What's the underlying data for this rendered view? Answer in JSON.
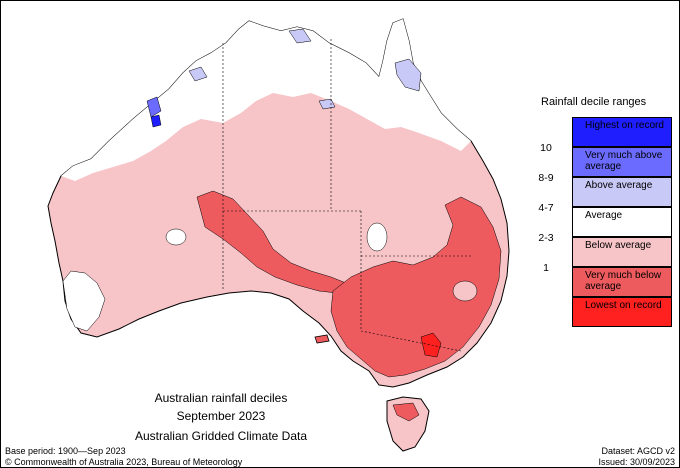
{
  "map": {
    "title_lines": [
      "Australian rainfall deciles",
      "September 2023",
      "Australian Gridded Climate Data"
    ],
    "base_period": "Base period: 1900—Sep 2023",
    "dataset": "Dataset: AGCD v2",
    "copyright": "© Commonwealth of Australia 2023, Bureau of Meteorology",
    "issued": "Issued: 30/09/2023"
  },
  "legend": {
    "title": "Rainfall decile ranges",
    "items": [
      {
        "range": "",
        "label": "Highest on record",
        "color": "#1e1eff"
      },
      {
        "range": "10",
        "label": "Very much above average",
        "color": "#6b6bff"
      },
      {
        "range": "8-9",
        "label": "Above average",
        "color": "#c9c9f7"
      },
      {
        "range": "4-7",
        "label": "Average",
        "color": "#ffffff"
      },
      {
        "range": "2-3",
        "label": "Below average",
        "color": "#f7c4c8"
      },
      {
        "range": "1",
        "label": "Very much below average",
        "color": "#ee5b5f"
      },
      {
        "range": "",
        "label": "Lowest on record",
        "color": "#ff2020"
      }
    ]
  }
}
